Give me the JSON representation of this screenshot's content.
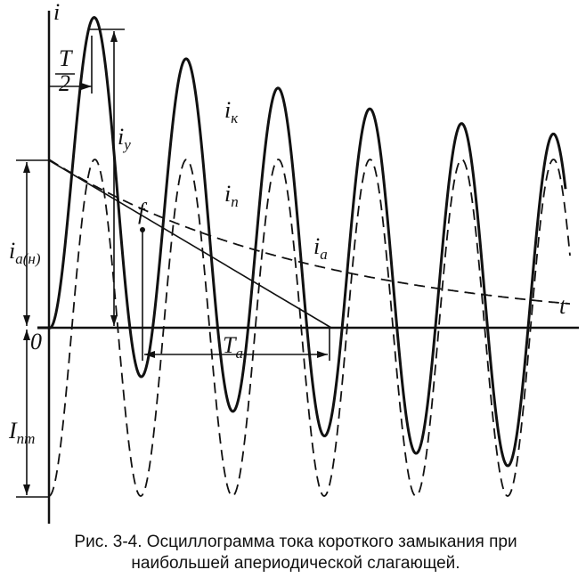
{
  "axis": {
    "y_label": "i",
    "x_label": "t",
    "origin": "0"
  },
  "labels": {
    "half_period": {
      "numerator": "T",
      "denominator": "2"
    },
    "shock": {
      "main": "i",
      "sub": "у"
    },
    "total": {
      "main": "i",
      "sub": "к"
    },
    "periodic": {
      "main": "i",
      "sub": "п"
    },
    "point": "f",
    "aperiodic": {
      "main": "i",
      "sub": "а"
    },
    "aperiodic_initial": {
      "main": "i",
      "sub": "а(н)"
    },
    "time_constant": {
      "main": "T",
      "sub": "а"
    },
    "periodic_amplitude": {
      "main": "I",
      "sub": "пm"
    }
  },
  "caption": [
    "Рис. 3-4. Осциллограмма тока короткого замыкания при",
    "наибольшей апериодической слагающей."
  ]
}
